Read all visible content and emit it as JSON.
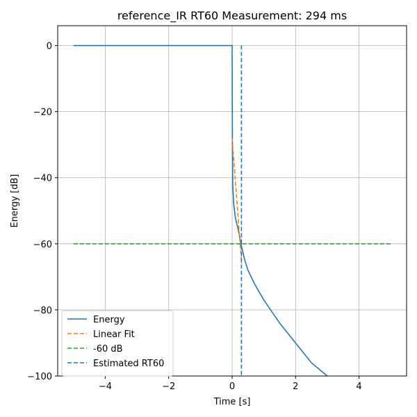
{
  "chart_data": {
    "type": "line",
    "title": "reference_IR RT60 Measurement: 294 ms",
    "xlabel": "Time [s]",
    "ylabel": "Energy [dB]",
    "xlim": [
      -5.5,
      5.5
    ],
    "ylim": [
      -100,
      6
    ],
    "xticks": [
      -4,
      -2,
      0,
      2,
      4
    ],
    "xtick_labels": [
      "−4",
      "−2",
      "0",
      "2",
      "4"
    ],
    "yticks": [
      0,
      -20,
      -40,
      -60,
      -80,
      -100
    ],
    "ytick_labels": [
      "0",
      "−20",
      "−40",
      "−60",
      "−80",
      "−100"
    ],
    "grid": true,
    "legend_position": "lower-left",
    "series": [
      {
        "name": "Energy",
        "color": "#1f77b4",
        "style": "solid",
        "x": [
          -5,
          0,
          0.005,
          0.01,
          0.02,
          0.05,
          0.1,
          0.2,
          0.3,
          0.4,
          0.5,
          0.7,
          1.0,
          1.5,
          2.0,
          2.5,
          3.0
        ],
        "y": [
          0,
          0,
          -20,
          -30,
          -42,
          -48,
          -52,
          -56,
          -61,
          -65,
          -68,
          -72,
          -77,
          -84,
          -90,
          -96,
          -100
        ]
      },
      {
        "name": "Linear Fit",
        "color": "#ff7f0e",
        "style": "dashed",
        "x": [
          0,
          0.3
        ],
        "y": [
          -28,
          -66
        ]
      },
      {
        "name": "-60 dB",
        "color": "#2ca02c",
        "style": "dashed",
        "x": [
          -5,
          5
        ],
        "y": [
          -60,
          -60
        ]
      },
      {
        "name": "Estimated RT60",
        "color": "#1f77b4",
        "style": "dashed",
        "x": [
          0.294,
          0.294
        ],
        "y": [
          0,
          -100
        ]
      }
    ]
  }
}
